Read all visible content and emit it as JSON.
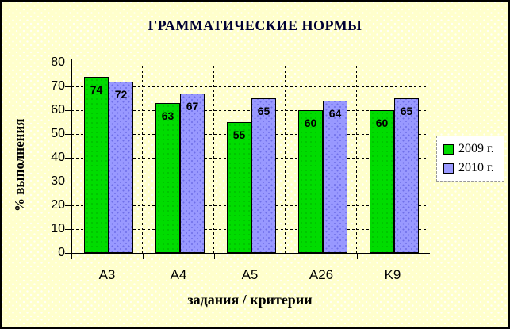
{
  "frame": {
    "background": "#FFFFCC",
    "border_color": "#000000"
  },
  "chart_data": {
    "type": "bar",
    "title": "ГРАММАТИЧЕСКИЕ НОРМЫ",
    "categories": [
      "A3",
      "A4",
      "A5",
      "A26",
      "K9"
    ],
    "series": [
      {
        "name": "2009 г.",
        "color": "#00DC00",
        "values": [
          74,
          63,
          55,
          60,
          60
        ]
      },
      {
        "name": "2010 г.",
        "color": "#9999FF",
        "values": [
          72,
          67,
          65,
          64,
          65
        ]
      }
    ],
    "data_labels": [
      [
        74,
        63,
        55,
        60,
        60
      ],
      [
        72,
        67,
        65,
        64,
        65
      ]
    ],
    "xlabel": "задания / критерии",
    "ylabel": "% выполнения",
    "ylim": [
      0,
      80
    ],
    "yticks": [
      0,
      10,
      20,
      30,
      40,
      50,
      60,
      70,
      80
    ],
    "grid": "dashed",
    "legend_position": "right",
    "legend_border": "dashed"
  }
}
